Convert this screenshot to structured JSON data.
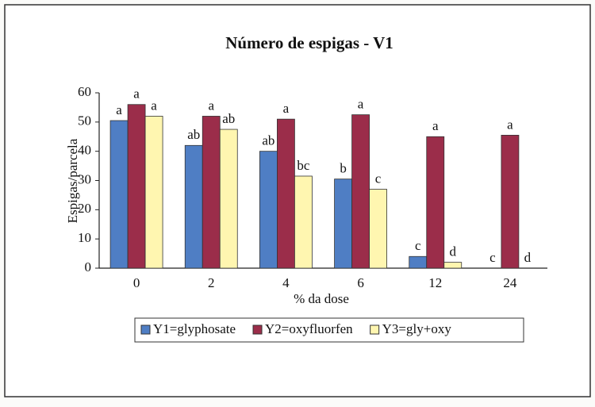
{
  "chart_data": {
    "type": "bar",
    "title": "Número de espigas - V1",
    "x_label": "% da dose",
    "y_label": "Espigas/parcela",
    "categories": [
      "0",
      "2",
      "4",
      "6",
      "12",
      "24"
    ],
    "series": [
      {
        "name": "Y1=glyphosate",
        "color": "#4f7ec4",
        "values": [
          50.5,
          42,
          40,
          30.5,
          4,
          0
        ],
        "annotations": [
          "a",
          "ab",
          "ab",
          "b",
          "c",
          "c"
        ]
      },
      {
        "name": "Y2=oxyfluorfen",
        "color": "#9b2d4a",
        "values": [
          56,
          52,
          51,
          52.5,
          45,
          45.5
        ],
        "annotations": [
          "a",
          "a",
          "a",
          "a",
          "a",
          "a"
        ]
      },
      {
        "name": "Y3=gly+oxy",
        "color": "#fff6b0",
        "values": [
          52,
          47.5,
          31.5,
          27,
          2,
          0
        ],
        "annotations": [
          "a",
          "ab",
          "bc",
          "c",
          "d",
          "d"
        ]
      }
    ],
    "ylim": [
      0,
      60
    ],
    "yticks": [
      0,
      10,
      20,
      30,
      40,
      50,
      60
    ],
    "grid": false
  }
}
